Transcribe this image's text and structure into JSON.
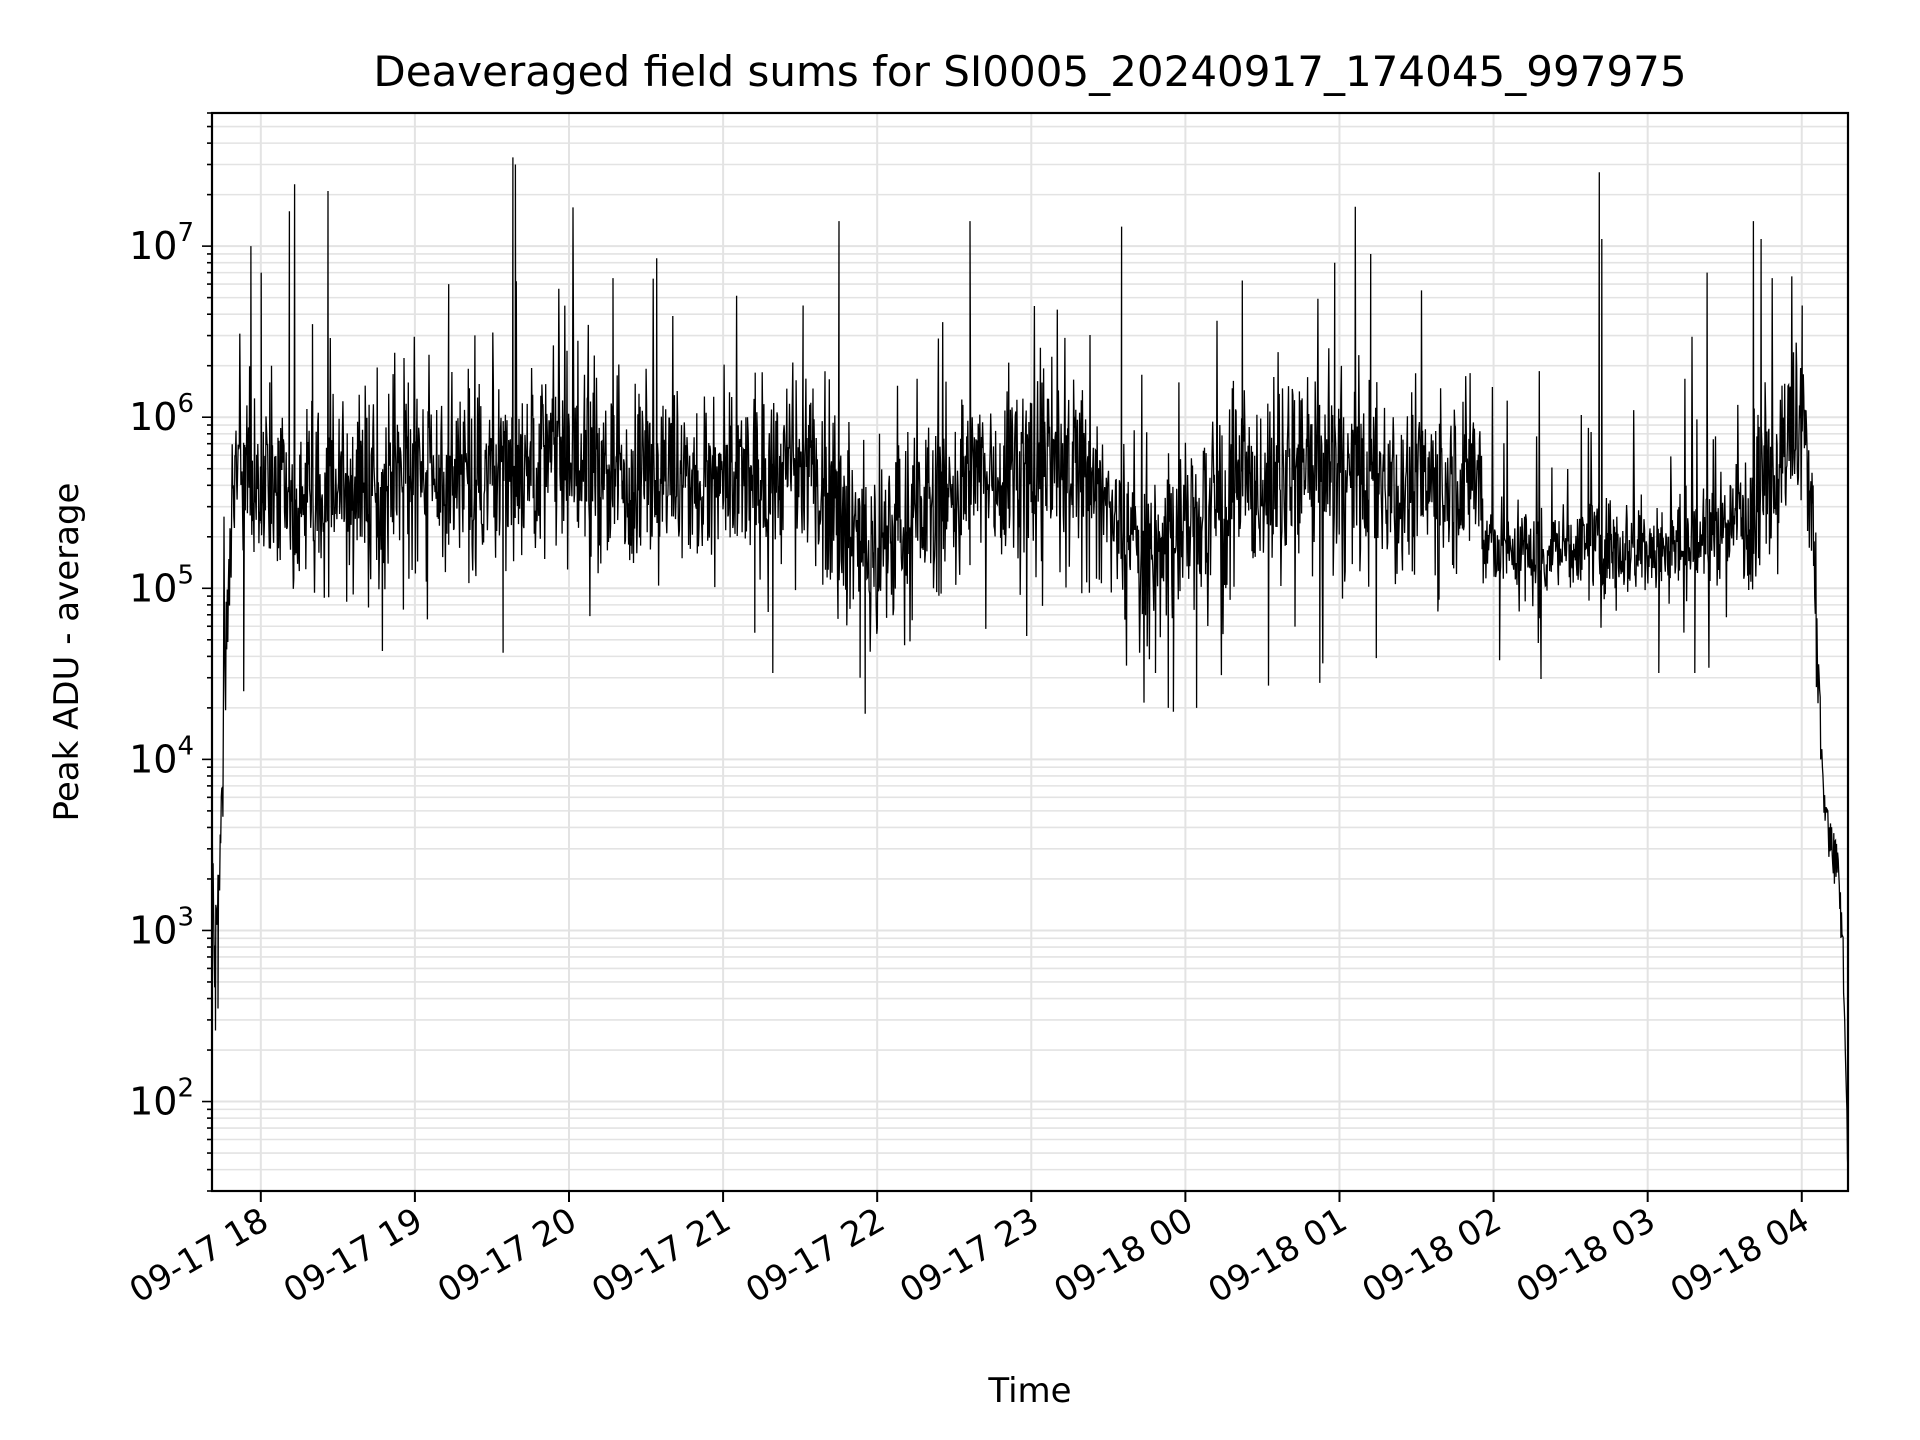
{
  "chart_data": {
    "type": "line",
    "title": "Deaveraged field sums for SI0005_20240917_174045_997975",
    "xlabel": "Time",
    "ylabel": "Peak ADU - average",
    "yscale": "log",
    "ylim": [
      30,
      60000000
    ],
    "xlim": [
      "09-17 17:41",
      "09-18 04:18"
    ],
    "grid": true,
    "line_color": "#000000",
    "grid_color": "#e3e3e3",
    "x_ticks": [
      "09-17 18",
      "09-17 19",
      "09-17 20",
      "09-17 21",
      "09-17 22",
      "09-17 23",
      "09-18 00",
      "09-18 01",
      "09-18 02",
      "09-18 03",
      "09-18 04"
    ],
    "y_ticks": [
      {
        "base": "10",
        "exp": "2",
        "value": 100
      },
      {
        "base": "10",
        "exp": "3",
        "value": 1000
      },
      {
        "base": "10",
        "exp": "4",
        "value": 10000
      },
      {
        "base": "10",
        "exp": "5",
        "value": 100000
      },
      {
        "base": "10",
        "exp": "6",
        "value": 1000000
      },
      {
        "base": "10",
        "exp": "7",
        "value": 10000000
      }
    ],
    "series": [
      {
        "name": "",
        "points": [
          [
            "09-17 17:41",
            5000
          ],
          [
            "09-17 17:42",
            500
          ],
          [
            "09-17 17:43",
            1500
          ],
          [
            "09-17 17:44",
            3000
          ],
          [
            "09-17 17:46",
            20000
          ],
          [
            "09-17 17:48",
            150000
          ],
          [
            "09-17 17:51",
            600000
          ],
          [
            "09-17 17:55",
            500000
          ],
          [
            "09-17 18:00",
            400000
          ],
          [
            "09-17 18:10",
            300000
          ],
          [
            "09-17 18:20",
            350000
          ],
          [
            "09-17 18:30",
            400000
          ],
          [
            "09-17 18:45",
            350000
          ],
          [
            "09-17 19:00",
            500000
          ],
          [
            "09-17 19:15",
            400000
          ],
          [
            "09-17 19:30",
            450000
          ],
          [
            "09-17 19:45",
            600000
          ],
          [
            "09-17 20:00",
            550000
          ],
          [
            "09-17 20:15",
            450000
          ],
          [
            "09-17 20:30",
            500000
          ],
          [
            "09-17 20:45",
            400000
          ],
          [
            "09-17 21:00",
            380000
          ],
          [
            "09-17 21:15",
            450000
          ],
          [
            "09-17 21:30",
            500000
          ],
          [
            "09-17 21:45",
            350000
          ],
          [
            "09-17 21:55",
            150000
          ],
          [
            "09-17 22:05",
            200000
          ],
          [
            "09-17 22:20",
            300000
          ],
          [
            "09-17 22:40",
            450000
          ],
          [
            "09-17 23:00",
            550000
          ],
          [
            "09-17 23:20",
            500000
          ],
          [
            "09-17 23:40",
            150000
          ],
          [
            "09-17 23:55",
            200000
          ],
          [
            "09-18 00:10",
            300000
          ],
          [
            "09-18 00:30",
            400000
          ],
          [
            "09-18 00:50",
            500000
          ],
          [
            "09-18 01:10",
            450000
          ],
          [
            "09-18 01:30",
            400000
          ],
          [
            "09-18 01:50",
            450000
          ],
          [
            "09-18 01:55",
            500000
          ],
          [
            "09-18 01:56",
            180000
          ],
          [
            "09-18 02:10",
            160000
          ],
          [
            "09-18 02:30",
            170000
          ],
          [
            "09-18 02:50",
            180000
          ],
          [
            "09-18 03:10",
            170000
          ],
          [
            "09-18 03:30",
            220000
          ],
          [
            "09-18 03:45",
            400000
          ],
          [
            "09-18 04:00",
            900000
          ],
          [
            "09-18 04:04",
            300000
          ],
          [
            "09-18 04:08",
            8000
          ],
          [
            "09-18 04:11",
            3000
          ],
          [
            "09-18 04:14",
            2500
          ],
          [
            "09-18 04:16",
            800
          ],
          [
            "09-18 04:18",
            40
          ]
        ],
        "spikes": [
          [
            "09-17 17:56",
            10000000
          ],
          [
            "09-17 18:00",
            7000000
          ],
          [
            "09-17 18:04",
            2000000
          ],
          [
            "09-17 18:11",
            16000000
          ],
          [
            "09-17 18:13",
            23000000
          ],
          [
            "09-17 18:20",
            3500000
          ],
          [
            "09-17 18:26",
            21000000
          ],
          [
            "09-17 19:13",
            6000000
          ],
          [
            "09-17 19:38",
            33000000
          ],
          [
            "09-17 19:39",
            30000000
          ],
          [
            "09-17 20:17",
            6500000
          ],
          [
            "09-17 20:34",
            8500000
          ],
          [
            "09-17 21:31",
            4500000
          ],
          [
            "09-17 21:45",
            14000000
          ],
          [
            "09-17 22:36",
            14000000
          ],
          [
            "09-17 23:35",
            13000000
          ],
          [
            "09-18 00:22",
            6300000
          ],
          [
            "09-18 00:58",
            8000000
          ],
          [
            "09-18 01:06",
            17000000
          ],
          [
            "09-18 01:12",
            9000000
          ],
          [
            "09-18 02:41",
            27000000
          ],
          [
            "09-18 02:42",
            11000000
          ],
          [
            "09-18 03:23",
            7000000
          ],
          [
            "09-18 03:41",
            14000000
          ],
          [
            "09-18 03:44",
            11000000
          ],
          [
            "09-18 04:00",
            4500000
          ]
        ],
        "dips": [
          [
            "09-17 17:42",
            260
          ],
          [
            "09-17 17:43",
            350
          ],
          [
            "09-17 17:53",
            25000
          ],
          [
            "09-17 18:47",
            43000
          ],
          [
            "09-17 19:34",
            42000
          ],
          [
            "09-17 21:12",
            55000
          ],
          [
            "09-17 21:19",
            32000
          ],
          [
            "09-17 21:53",
            30000
          ],
          [
            "09-17 21:55",
            18500
          ],
          [
            "09-17 23:48",
            32000
          ],
          [
            "09-17 23:53",
            20000
          ],
          [
            "09-17 23:55",
            19000
          ],
          [
            "09-18 00:04",
            20000
          ],
          [
            "09-18 00:32",
            27000
          ],
          [
            "09-18 00:52",
            28000
          ],
          [
            "09-18 02:02",
            38000
          ],
          [
            "09-18 03:04",
            32000
          ],
          [
            "09-18 03:18",
            32000
          ]
        ]
      }
    ]
  }
}
